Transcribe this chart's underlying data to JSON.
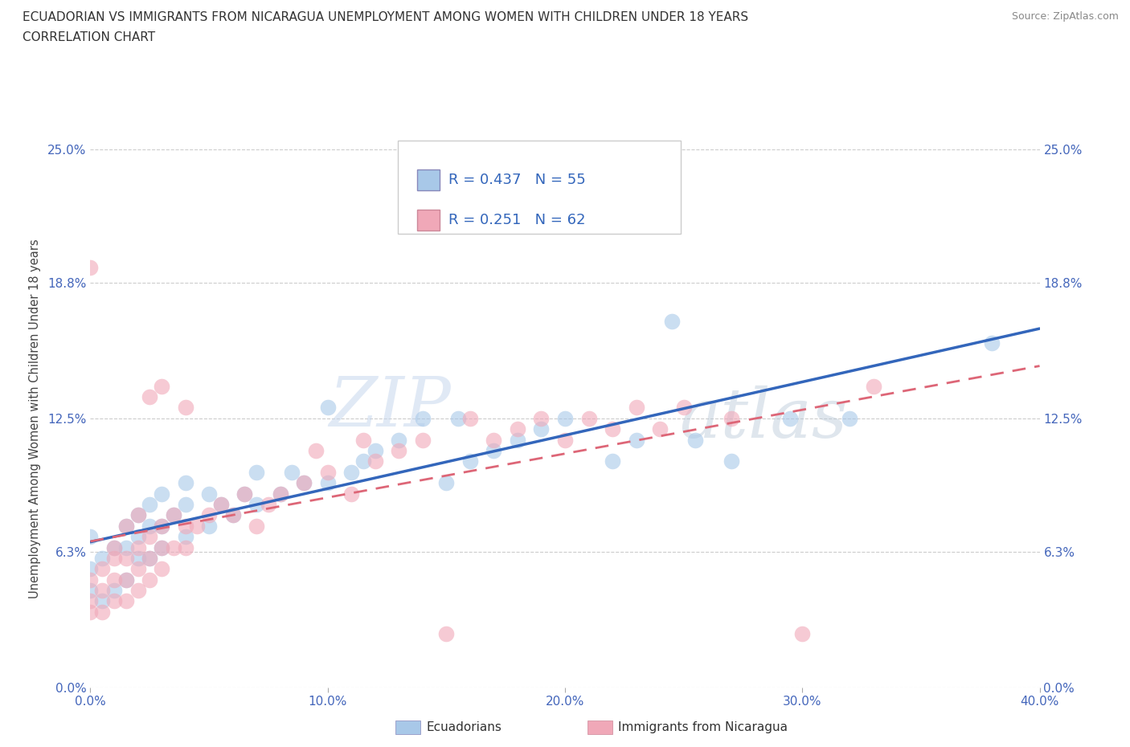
{
  "title_line1": "ECUADORIAN VS IMMIGRANTS FROM NICARAGUA UNEMPLOYMENT AMONG WOMEN WITH CHILDREN UNDER 18 YEARS",
  "title_line2": "CORRELATION CHART",
  "source": "Source: ZipAtlas.com",
  "ylabel": "Unemployment Among Women with Children Under 18 years",
  "xmin": 0.0,
  "xmax": 0.4,
  "ymin": 0.0,
  "ymax": 0.25,
  "yticks": [
    0.0,
    0.063,
    0.125,
    0.188,
    0.25
  ],
  "ytick_labels": [
    "0.0%",
    "6.3%",
    "12.5%",
    "18.8%",
    "25.0%"
  ],
  "xtick_labels": [
    "0.0%",
    "10.0%",
    "20.0%",
    "30.0%",
    "40.0%"
  ],
  "watermark_zip": "ZIP",
  "watermark_atlas": "atlas",
  "blue_color": "#a8c8e8",
  "pink_color": "#f0a8b8",
  "blue_line_color": "#3366bb",
  "pink_line_color": "#dd6677",
  "gridline_color": "#cccccc",
  "title_color": "#333333",
  "tick_color": "#4466bb",
  "legend_label1": "Ecuadorians",
  "legend_label2": "Immigrants from Nicaragua",
  "blue_scatter_x": [
    0.0,
    0.0,
    0.0,
    0.005,
    0.005,
    0.01,
    0.01,
    0.015,
    0.015,
    0.015,
    0.02,
    0.02,
    0.02,
    0.025,
    0.025,
    0.025,
    0.03,
    0.03,
    0.03,
    0.035,
    0.04,
    0.04,
    0.04,
    0.05,
    0.05,
    0.055,
    0.06,
    0.065,
    0.07,
    0.07,
    0.08,
    0.085,
    0.09,
    0.1,
    0.1,
    0.11,
    0.115,
    0.12,
    0.13,
    0.14,
    0.15,
    0.155,
    0.16,
    0.17,
    0.18,
    0.19,
    0.2,
    0.22,
    0.23,
    0.245,
    0.255,
    0.27,
    0.295,
    0.32,
    0.38
  ],
  "blue_scatter_y": [
    0.045,
    0.055,
    0.07,
    0.04,
    0.06,
    0.045,
    0.065,
    0.05,
    0.065,
    0.075,
    0.06,
    0.07,
    0.08,
    0.06,
    0.075,
    0.085,
    0.065,
    0.075,
    0.09,
    0.08,
    0.07,
    0.085,
    0.095,
    0.075,
    0.09,
    0.085,
    0.08,
    0.09,
    0.085,
    0.1,
    0.09,
    0.1,
    0.095,
    0.095,
    0.13,
    0.1,
    0.105,
    0.11,
    0.115,
    0.125,
    0.095,
    0.125,
    0.105,
    0.11,
    0.115,
    0.12,
    0.125,
    0.105,
    0.115,
    0.17,
    0.115,
    0.105,
    0.125,
    0.125,
    0.16
  ],
  "pink_scatter_x": [
    0.0,
    0.0,
    0.0,
    0.0,
    0.005,
    0.005,
    0.005,
    0.01,
    0.01,
    0.01,
    0.01,
    0.015,
    0.015,
    0.015,
    0.015,
    0.02,
    0.02,
    0.02,
    0.02,
    0.025,
    0.025,
    0.025,
    0.025,
    0.03,
    0.03,
    0.03,
    0.03,
    0.035,
    0.035,
    0.04,
    0.04,
    0.04,
    0.045,
    0.05,
    0.055,
    0.06,
    0.065,
    0.07,
    0.075,
    0.08,
    0.09,
    0.095,
    0.1,
    0.11,
    0.115,
    0.12,
    0.13,
    0.14,
    0.15,
    0.16,
    0.17,
    0.18,
    0.19,
    0.2,
    0.21,
    0.22,
    0.23,
    0.24,
    0.25,
    0.27,
    0.3,
    0.33
  ],
  "pink_scatter_y": [
    0.035,
    0.04,
    0.05,
    0.195,
    0.035,
    0.045,
    0.055,
    0.04,
    0.05,
    0.06,
    0.065,
    0.04,
    0.05,
    0.06,
    0.075,
    0.045,
    0.055,
    0.065,
    0.08,
    0.05,
    0.06,
    0.07,
    0.135,
    0.055,
    0.065,
    0.075,
    0.14,
    0.065,
    0.08,
    0.065,
    0.075,
    0.13,
    0.075,
    0.08,
    0.085,
    0.08,
    0.09,
    0.075,
    0.085,
    0.09,
    0.095,
    0.11,
    0.1,
    0.09,
    0.115,
    0.105,
    0.11,
    0.115,
    0.025,
    0.125,
    0.115,
    0.12,
    0.125,
    0.115,
    0.125,
    0.12,
    0.13,
    0.12,
    0.13,
    0.125,
    0.025,
    0.14
  ]
}
